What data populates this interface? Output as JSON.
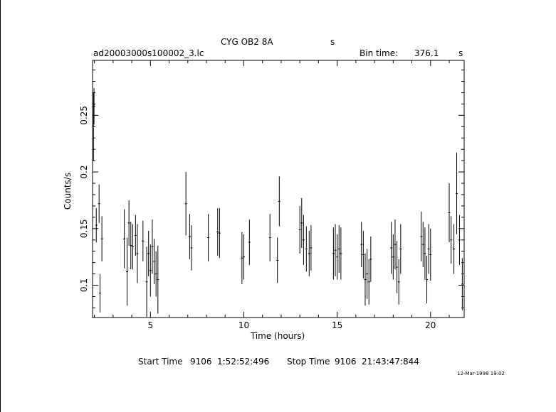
{
  "header": {
    "object_name": "CYG OB2 8A",
    "object_unit": "s",
    "file_name": "ad20003000s100002_3.lc",
    "bin_time_label": "Bin time:",
    "bin_time_value": "376.1",
    "bin_time_unit": "s"
  },
  "footer": {
    "start_label": "Start Time",
    "start_day": "9106",
    "start_clock": "1:52:52:496",
    "stop_label": "Stop Time",
    "stop_day": "9106",
    "stop_clock": "21:43:47:844",
    "plot_date": "12-Mar-1998 19:02"
  },
  "colors": {
    "ink": "#000000",
    "background": "#ffffff"
  },
  "chart_data": {
    "type": "scatter",
    "title": "CYG OB2 8A",
    "xlabel": "Time (hours)",
    "ylabel": "Counts/s",
    "xlim": [
      1.9,
      21.8
    ],
    "ylim": [
      0.0715,
      0.2985
    ],
    "x_ticks": [
      5,
      10,
      15,
      20
    ],
    "y_ticks": [
      0.1,
      0.15,
      0.2,
      0.25
    ],
    "x_tick_labels": [
      "5",
      "10",
      "15",
      "20"
    ],
    "y_tick_labels": [
      "0.1",
      "0.15",
      "0.2",
      "0.25"
    ],
    "grid": false,
    "series": [
      {
        "x": [
          1.95,
          1.98,
          2.1,
          2.25,
          2.3,
          2.4,
          3.6,
          3.75,
          3.85,
          3.95,
          4.05,
          4.2,
          4.3,
          4.6,
          4.8,
          4.9,
          5.0,
          5.1,
          5.2,
          5.3,
          5.4,
          6.9,
          7.1,
          7.2,
          8.1,
          8.6,
          8.7,
          9.9,
          10.0,
          10.3,
          11.4,
          11.8,
          11.9,
          13.0,
          13.1,
          13.2,
          13.35,
          13.5,
          13.6,
          14.8,
          14.9,
          15.0,
          15.1,
          15.2,
          16.3,
          16.4,
          16.5,
          16.6,
          16.7,
          16.8,
          17.9,
          18.0,
          18.1,
          18.2,
          18.3,
          18.4,
          19.5,
          19.6,
          19.7,
          19.8,
          19.9,
          20.0,
          21.0,
          21.1,
          21.25,
          21.4,
          21.55,
          21.7
        ],
        "y": [
          0.24,
          0.258,
          0.153,
          0.172,
          0.093,
          0.141,
          0.141,
          0.112,
          0.155,
          0.135,
          0.134,
          0.144,
          0.128,
          0.139,
          0.103,
          0.128,
          0.113,
          0.134,
          0.121,
          0.11,
          0.105,
          0.172,
          0.143,
          0.133,
          0.142,
          0.147,
          0.146,
          0.124,
          0.125,
          0.138,
          0.142,
          0.122,
          0.174,
          0.149,
          0.155,
          0.14,
          0.132,
          0.128,
          0.133,
          0.128,
          0.131,
          0.125,
          0.132,
          0.128,
          0.136,
          0.127,
          0.105,
          0.11,
          0.103,
          0.123,
          0.133,
          0.125,
          0.136,
          0.116,
          0.103,
          0.132,
          0.143,
          0.136,
          0.128,
          0.105,
          0.132,
          0.127,
          0.164,
          0.14,
          0.132,
          0.181,
          0.14,
          0.101
        ],
        "yerr": [
          0.03,
          0.016,
          0.015,
          0.017,
          0.017,
          0.02,
          0.026,
          0.03,
          0.02,
          0.021,
          0.02,
          0.018,
          0.026,
          0.018,
          0.031,
          0.02,
          0.023,
          0.024,
          0.02,
          0.02,
          0.03,
          0.028,
          0.02,
          0.02,
          0.021,
          0.021,
          0.022,
          0.023,
          0.02,
          0.02,
          0.021,
          0.02,
          0.022,
          0.021,
          0.022,
          0.022,
          0.02,
          0.02,
          0.02,
          0.023,
          0.023,
          0.02,
          0.021,
          0.023,
          0.02,
          0.021,
          0.023,
          0.022,
          0.02,
          0.02,
          0.023,
          0.02,
          0.022,
          0.023,
          0.02,
          0.022,
          0.022,
          0.02,
          0.023,
          0.021,
          0.022,
          0.023,
          0.026,
          0.021,
          0.022,
          0.036,
          0.022,
          0.023
        ]
      }
    ]
  }
}
